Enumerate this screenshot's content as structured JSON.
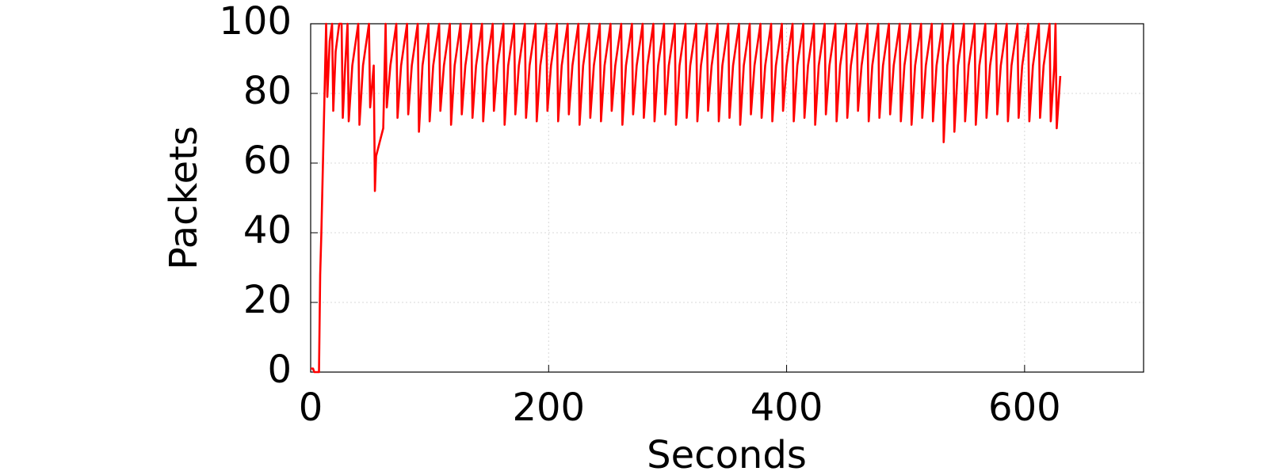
{
  "chart_data": {
    "type": "line",
    "x_label": "Seconds",
    "y_label": "Packets",
    "color": "#ff0000",
    "grid": true,
    "xlim": [
      0,
      700
    ],
    "xticks": [
      0,
      200,
      400,
      600
    ],
    "ylim": [
      0,
      100
    ],
    "yticks": [
      0,
      20,
      40,
      60,
      80,
      100
    ],
    "x": [
      0,
      2,
      3,
      7,
      8,
      9,
      10,
      11,
      12,
      13,
      14,
      16,
      18,
      19,
      21,
      24,
      26,
      27,
      29,
      31,
      32,
      35,
      40,
      41,
      44,
      49,
      50,
      53,
      54,
      55,
      58,
      61,
      63,
      64,
      67,
      72,
      73,
      76,
      81,
      82,
      85,
      90,
      91,
      94,
      99,
      100,
      103,
      108,
      109,
      112,
      117,
      118,
      121,
      126,
      127,
      130,
      135,
      136,
      139,
      144,
      145,
      148,
      153,
      154,
      157,
      162,
      163,
      166,
      171,
      172,
      175,
      180,
      181,
      184,
      189,
      190,
      193,
      198,
      199,
      202,
      207,
      208,
      211,
      216,
      217,
      220,
      225,
      226,
      229,
      234,
      235,
      238,
      243,
      244,
      247,
      252,
      253,
      256,
      261,
      262,
      265,
      270,
      271,
      274,
      279,
      280,
      283,
      288,
      289,
      292,
      297,
      298,
      301,
      306,
      307,
      310,
      315,
      316,
      319,
      324,
      325,
      328,
      333,
      334,
      337,
      342,
      343,
      346,
      351,
      352,
      355,
      360,
      361,
      364,
      369,
      370,
      373,
      378,
      379,
      382,
      387,
      388,
      391,
      396,
      397,
      400,
      405,
      406,
      409,
      414,
      415,
      418,
      423,
      424,
      427,
      432,
      433,
      436,
      441,
      442,
      445,
      450,
      451,
      454,
      459,
      460,
      463,
      468,
      469,
      472,
      477,
      478,
      481,
      486,
      487,
      490,
      495,
      496,
      499,
      504,
      505,
      508,
      513,
      514,
      517,
      522,
      523,
      526,
      531,
      532,
      535,
      540,
      541,
      544,
      549,
      550,
      553,
      558,
      559,
      562,
      567,
      568,
      571,
      576,
      577,
      580,
      585,
      586,
      589,
      594,
      595,
      598,
      603,
      604,
      607,
      612,
      613,
      616,
      621,
      622,
      625,
      626,
      627,
      630
    ],
    "values": [
      1,
      1,
      0,
      0,
      28,
      40,
      55,
      70,
      85,
      100,
      79,
      95,
      100,
      75,
      92,
      100,
      100,
      73,
      88,
      100,
      72,
      88,
      100,
      71,
      88,
      100,
      76,
      88,
      52,
      62,
      66,
      70,
      100,
      76,
      88,
      100,
      73,
      88,
      100,
      74,
      88,
      100,
      69,
      88,
      100,
      72,
      88,
      100,
      75,
      88,
      100,
      71,
      88,
      100,
      74,
      88,
      100,
      73,
      88,
      100,
      72,
      88,
      100,
      75,
      88,
      100,
      71,
      88,
      100,
      74,
      88,
      100,
      73,
      88,
      100,
      72,
      88,
      100,
      75,
      88,
      100,
      72,
      88,
      100,
      74,
      88,
      100,
      71,
      88,
      100,
      73,
      88,
      100,
      72,
      88,
      100,
      75,
      88,
      100,
      71,
      88,
      100,
      74,
      88,
      100,
      73,
      88,
      100,
      72,
      88,
      100,
      74,
      88,
      100,
      71,
      88,
      100,
      73,
      88,
      100,
      72,
      88,
      100,
      75,
      88,
      100,
      72,
      88,
      100,
      73,
      88,
      100,
      71,
      88,
      100,
      74,
      88,
      100,
      73,
      88,
      100,
      72,
      88,
      100,
      75,
      88,
      100,
      72,
      88,
      100,
      73,
      88,
      100,
      71,
      88,
      100,
      74,
      88,
      100,
      72,
      88,
      100,
      73,
      88,
      100,
      75,
      88,
      100,
      72,
      88,
      100,
      73,
      88,
      100,
      74,
      88,
      100,
      72,
      88,
      100,
      71,
      88,
      100,
      73,
      88,
      100,
      72,
      88,
      100,
      66,
      88,
      100,
      69,
      88,
      100,
      72,
      88,
      100,
      71,
      88,
      100,
      73,
      88,
      100,
      74,
      88,
      100,
      72,
      88,
      100,
      73,
      88,
      100,
      72,
      88,
      100,
      73,
      88,
      100,
      72,
      88,
      100,
      70,
      85
    ]
  }
}
